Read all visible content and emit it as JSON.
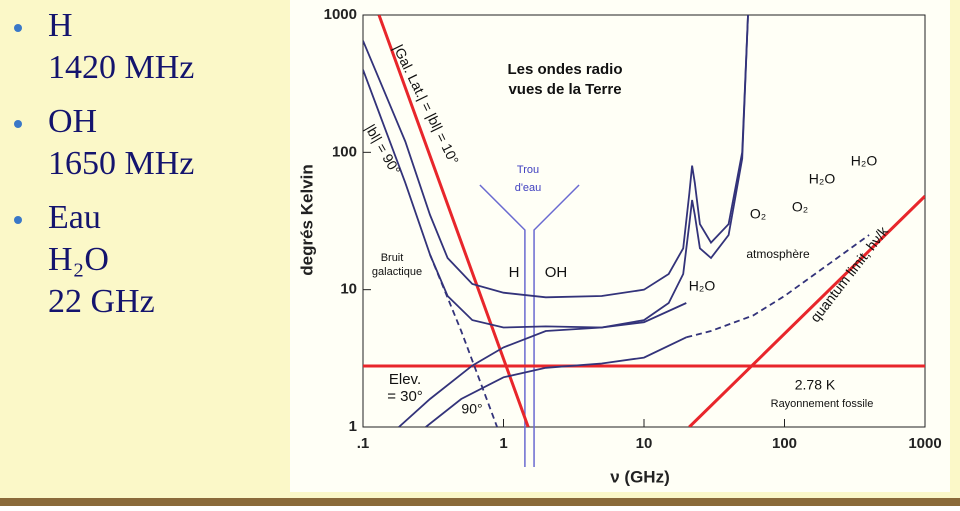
{
  "bullets": [
    {
      "label": "H",
      "detail": [
        "1420 MHz"
      ]
    },
    {
      "label": "OH",
      "detail": [
        "1650 MHz"
      ]
    },
    {
      "label": "Eau",
      "detail": [
        "H₂O",
        "22 GHz"
      ]
    }
  ],
  "chart_data": {
    "type": "line",
    "title": [
      "Les ondes radio",
      "vues de la Terre"
    ],
    "x_label": "ν (GHz)",
    "y_label": "degrés Kelvin",
    "log_x": true,
    "log_y": true,
    "xlim": [
      0.1,
      1000
    ],
    "ylim": [
      1,
      1000
    ],
    "xticks": [
      {
        "value": 0.1,
        "label": ".1"
      },
      1,
      10,
      100,
      1000
    ],
    "yticks": [
      1,
      10,
      100,
      1000
    ],
    "series": [
      {
        "color": "#e8262b",
        "x": [
          0.13,
          1.5
        ],
        "values": [
          1000,
          1
        ]
      },
      {
        "color": "#e8262b",
        "x": [
          21,
          1000
        ],
        "values": [
          1,
          48
        ]
      },
      {
        "color": "#e8262b",
        "x": [
          0.1,
          1000
        ],
        "values": [
          2.78,
          2.78
        ]
      },
      {
        "color": "#33337a",
        "x": [
          0.1,
          0.2,
          0.3,
          0.4,
          0.6,
          1,
          2,
          5,
          10,
          15,
          19,
          21,
          22,
          23,
          25,
          30,
          40,
          50,
          55
        ],
        "values": [
          650,
          120,
          35,
          17,
          11,
          9.5,
          8.8,
          9,
          10,
          13,
          20,
          50,
          80,
          60,
          30,
          22,
          30,
          100,
          1000
        ]
      },
      {
        "color": "#33337a",
        "x": [
          0.1,
          0.2,
          0.3,
          0.4,
          0.6,
          1,
          2,
          5,
          10,
          15,
          19,
          21,
          22,
          23,
          25,
          30,
          40,
          50,
          55
        ],
        "values": [
          400,
          60,
          18,
          9,
          6,
          5.3,
          5.4,
          5.3,
          6,
          8,
          13,
          30,
          45,
          35,
          20,
          17,
          25,
          90,
          1000
        ]
      },
      {
        "color": "#33337a",
        "x": [
          0.18,
          0.3,
          0.6,
          1,
          2,
          5,
          10,
          20
        ],
        "values": [
          1,
          1.6,
          2.8,
          3.8,
          5,
          5.3,
          5.8,
          8
        ]
      },
      {
        "color": "#33337a",
        "x": [
          0.28,
          0.5,
          1,
          2,
          5,
          10,
          20
        ],
        "values": [
          1,
          1.6,
          2.3,
          2.7,
          2.9,
          3.2,
          4.5
        ]
      },
      {
        "color": "#33337a",
        "dashed": true,
        "x": [
          20,
          30,
          60,
          100,
          200,
          400
        ],
        "values": [
          4.5,
          5,
          6.5,
          9,
          15,
          25
        ]
      },
      {
        "color": "#33337a",
        "dashed": true,
        "x": [
          0.3,
          0.5,
          0.7,
          0.9
        ],
        "values": [
          18,
          5,
          2,
          1
        ]
      }
    ],
    "annotations": [
      "Les ondes radio",
      "Trou",
      "d'eau",
      "H",
      "OH",
      "Bruit",
      "galactique",
      "atmosphère",
      "H₂O",
      "O₂",
      "O₂",
      "H₂O",
      "H₂O",
      "2.78 K",
      "Rayonnement fossile",
      "quantum limit, hν/k",
      "|Gal. Lat.| = |bl| = 10°",
      "|bl| = 90°",
      "Elev.",
      "= 30°",
      "90°"
    ]
  }
}
